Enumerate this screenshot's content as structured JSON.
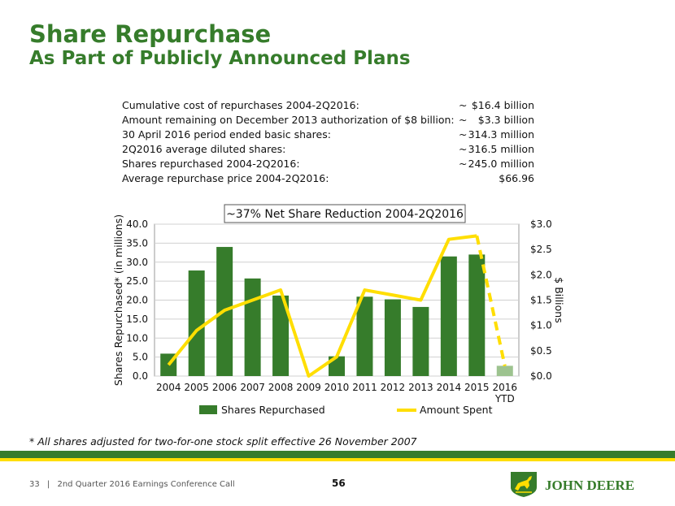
{
  "title": "Share Repurchase",
  "subtitle": "As Part of Publicly Announced Plans",
  "stats": [
    {
      "label": "Cumulative cost of repurchases 2004-2Q2016:",
      "tilde": "~",
      "value": "$16.4 billion"
    },
    {
      "label": "Amount remaining on December 2013 authorization of $8 billion:",
      "tilde": "~",
      "value": "$3.3 billion"
    },
    {
      "label": "30 April 2016 period ended basic shares:",
      "tilde": "~",
      "value": "314.3 million"
    },
    {
      "label": "2Q2016 average diluted shares:",
      "tilde": "~",
      "value": "316.5 million"
    },
    {
      "label": "Shares repurchased 2004-2Q2016:",
      "tilde": "~",
      "value": "245.0 million"
    },
    {
      "label": "Average repurchase price 2004-2Q2016:",
      "tilde": "",
      "value": "$66.96"
    }
  ],
  "chart_data": {
    "type": "bar",
    "title": "~37% Net Share Reduction 2004-2Q2016",
    "categories": [
      "2004",
      "2005",
      "2006",
      "2007",
      "2008",
      "2009",
      "2010",
      "2011",
      "2012",
      "2013",
      "2014",
      "2015",
      "2016 YTD"
    ],
    "series": [
      {
        "name": "Shares Repurchased",
        "type": "bar",
        "axis": "left",
        "values": [
          5.9,
          27.8,
          34.0,
          25.7,
          21.2,
          0,
          5.2,
          20.9,
          20.2,
          18.2,
          31.5,
          32.0,
          2.7
        ]
      },
      {
        "name": "Amount Spent",
        "type": "line",
        "axis": "right",
        "values": [
          0.22,
          0.9,
          1.3,
          1.5,
          1.7,
          0.0,
          0.38,
          1.7,
          1.6,
          1.5,
          2.7,
          2.77,
          0.2
        ]
      }
    ],
    "ylabel": "Shares Repurchased* (in millions)",
    "y2label": "$ Billions",
    "ylim": [
      0,
      40
    ],
    "y2lim": [
      0,
      3
    ],
    "yticks": [
      "0.0",
      "5.0",
      "10.0",
      "15.0",
      "20.0",
      "25.0",
      "30.0",
      "35.0",
      "40.0"
    ],
    "y2ticks": [
      "$0.0",
      "$0.5",
      "$1.0",
      "$1.5",
      "$2.0",
      "$2.5",
      "$3.0"
    ],
    "bar_color": "#367c2b",
    "bar_highlight_color": "#9dc38f",
    "line_color": "#ffde00",
    "grid": true,
    "legend": "bottom"
  },
  "footnote": "* All shares adjusted for two-for-one stock split effective 26 November 2007",
  "footer": {
    "page_ref": "33",
    "separator": "|",
    "event": "2nd Quarter 2016 Earnings Conference Call",
    "page_number": "56"
  },
  "logo": {
    "text": "JOHN DEERE",
    "color": "#367c2b"
  }
}
